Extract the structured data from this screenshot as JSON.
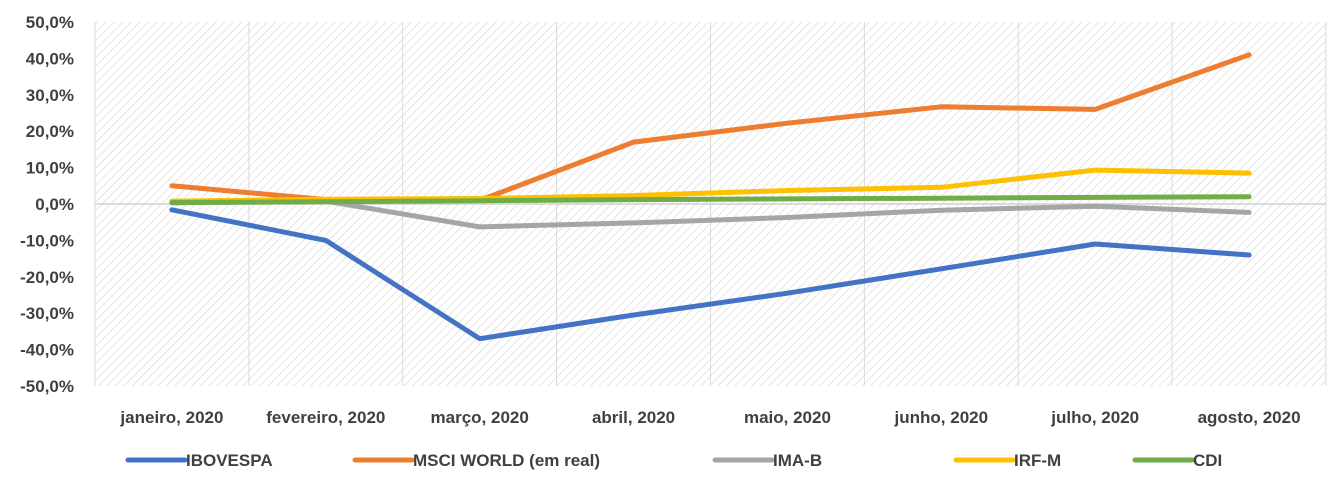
{
  "chart_data": {
    "type": "line",
    "title": "",
    "xlabel": "",
    "ylabel": "",
    "categories": [
      "janeiro, 2020",
      "fevereiro, 2020",
      "março, 2020",
      "abril, 2020",
      "maio, 2020",
      "junho, 2020",
      "julho, 2020",
      "agosto, 2020"
    ],
    "ylim": [
      -50,
      50
    ],
    "yticks": [
      50,
      40,
      30,
      20,
      10,
      0,
      -10,
      -20,
      -30,
      -40,
      -50
    ],
    "ytick_labels": [
      "50,0%",
      "40,0%",
      "30,0%",
      "20,0%",
      "10,0%",
      "0,0%",
      "-10,0%",
      "-20,0%",
      "-30,0%",
      "-40,0%",
      "-50,0%"
    ],
    "grid": "vertical",
    "legend_position": "bottom",
    "series": [
      {
        "name": "IBOVESPA",
        "color": "#4472C4",
        "values": [
          -1.6,
          -10.0,
          -37.0,
          -30.5,
          -24.5,
          -17.8,
          -11.0,
          -14.0
        ]
      },
      {
        "name": "MSCI WORLD (em real)",
        "color": "#ED7D31",
        "values": [
          5.0,
          1.2,
          1.0,
          17.0,
          22.2,
          26.7,
          26.0,
          41.0
        ]
      },
      {
        "name": "IMA-B",
        "color": "#A5A5A5",
        "values": [
          0.3,
          0.8,
          -6.3,
          -5.2,
          -3.7,
          -1.7,
          -0.6,
          -2.3
        ]
      },
      {
        "name": "IRF-M",
        "color": "#FFC000",
        "values": [
          0.8,
          1.3,
          1.5,
          2.3,
          3.7,
          4.6,
          9.3,
          8.5
        ]
      },
      {
        "name": "CDI",
        "color": "#70AD47",
        "values": [
          0.4,
          0.6,
          0.9,
          1.2,
          1.4,
          1.6,
          1.8,
          2.0
        ]
      }
    ]
  }
}
